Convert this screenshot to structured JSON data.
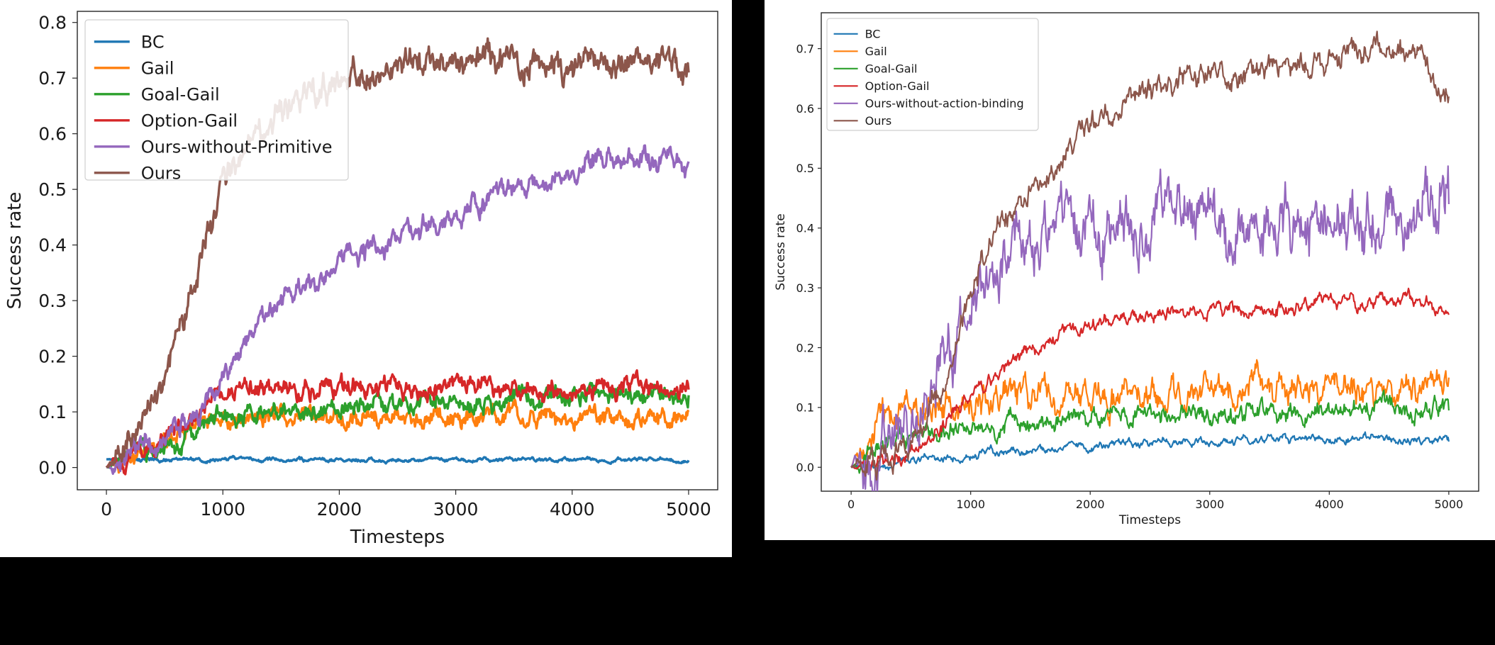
{
  "colors": {
    "BC": "#1f77b4",
    "Gail": "#ff7f0e",
    "Goal-Gail": "#2ca02c",
    "Option-Gail": "#d62728",
    "Purple": "#9467bd",
    "Ours": "#8c564b"
  },
  "chart_data": [
    {
      "type": "line",
      "xlabel": "Timesteps",
      "ylabel": "Success rate",
      "xlim": [
        -250,
        5250
      ],
      "ylim": [
        -0.04,
        0.82
      ],
      "xticks": [
        "0",
        "1000",
        "2000",
        "3000",
        "4000",
        "5000"
      ],
      "xtick_values": [
        0,
        1000,
        2000,
        3000,
        4000,
        5000
      ],
      "yticks": [
        "0.0",
        "0.1",
        "0.2",
        "0.3",
        "0.4",
        "0.5",
        "0.6",
        "0.7",
        "0.8"
      ],
      "ytick_values": [
        0.0,
        0.1,
        0.2,
        0.3,
        0.4,
        0.5,
        0.6,
        0.7,
        0.8
      ],
      "grid": false,
      "legend_position": "top-left",
      "x": [
        0,
        250,
        500,
        750,
        1000,
        1250,
        1500,
        1750,
        2000,
        2250,
        2500,
        2750,
        3000,
        3250,
        3500,
        3750,
        4000,
        4250,
        4500,
        4750,
        5000
      ],
      "series": [
        {
          "name": "BC",
          "color_key": "BC",
          "noise": 0.002,
          "values": [
            0.015,
            0.014,
            0.014,
            0.014,
            0.015,
            0.014,
            0.014,
            0.014,
            0.014,
            0.014,
            0.014,
            0.014,
            0.014,
            0.014,
            0.014,
            0.014,
            0.014,
            0.014,
            0.014,
            0.014,
            0.013
          ]
        },
        {
          "name": "Gail",
          "color_key": "Gail",
          "noise": 0.01,
          "values": [
            0.0,
            0.02,
            0.05,
            0.08,
            0.09,
            0.09,
            0.09,
            0.095,
            0.095,
            0.09,
            0.09,
            0.085,
            0.09,
            0.09,
            0.09,
            0.09,
            0.09,
            0.09,
            0.085,
            0.09,
            0.1
          ]
        },
        {
          "name": "Goal-Gail",
          "color_key": "Goal-Gail",
          "noise": 0.01,
          "values": [
            0.0,
            0.02,
            0.04,
            0.065,
            0.09,
            0.095,
            0.1,
            0.1,
            0.105,
            0.11,
            0.11,
            0.115,
            0.12,
            0.12,
            0.125,
            0.13,
            0.13,
            0.135,
            0.135,
            0.135,
            0.13
          ]
        },
        {
          "name": "Option-Gail",
          "color_key": "Option-Gail",
          "noise": 0.01,
          "values": [
            0.0,
            0.03,
            0.06,
            0.1,
            0.14,
            0.14,
            0.14,
            0.14,
            0.14,
            0.14,
            0.14,
            0.14,
            0.14,
            0.14,
            0.14,
            0.14,
            0.14,
            0.14,
            0.14,
            0.14,
            0.14
          ]
        },
        {
          "name": "Ours-without-Primitive",
          "color_key": "Purple",
          "noise": 0.012,
          "values": [
            0.0,
            0.02,
            0.05,
            0.09,
            0.15,
            0.23,
            0.3,
            0.33,
            0.37,
            0.39,
            0.41,
            0.43,
            0.45,
            0.48,
            0.5,
            0.52,
            0.54,
            0.56,
            0.56,
            0.55,
            0.55
          ]
        },
        {
          "name": "Ours",
          "color_key": "Ours",
          "noise": 0.015,
          "values": [
            0.0,
            0.06,
            0.15,
            0.33,
            0.5,
            0.6,
            0.64,
            0.67,
            0.69,
            0.72,
            0.72,
            0.72,
            0.72,
            0.73,
            0.72,
            0.72,
            0.73,
            0.73,
            0.73,
            0.73,
            0.71
          ]
        }
      ]
    },
    {
      "type": "line",
      "xlabel": "Timesteps",
      "ylabel": "Success rate",
      "xlim": [
        -250,
        5250
      ],
      "ylim": [
        -0.04,
        0.76
      ],
      "xticks": [
        "0",
        "1000",
        "2000",
        "3000",
        "4000",
        "5000"
      ],
      "xtick_values": [
        0,
        1000,
        2000,
        3000,
        4000,
        5000
      ],
      "yticks": [
        "0.0",
        "0.1",
        "0.2",
        "0.3",
        "0.4",
        "0.5",
        "0.6",
        "0.7"
      ],
      "ytick_values": [
        0.0,
        0.1,
        0.2,
        0.3,
        0.4,
        0.5,
        0.6,
        0.7
      ],
      "grid": false,
      "legend_position": "top-left",
      "x": [
        0,
        250,
        500,
        750,
        1000,
        1250,
        1500,
        1750,
        2000,
        2250,
        2500,
        2750,
        3000,
        3250,
        3500,
        3750,
        4000,
        4250,
        4500,
        4750,
        5000
      ],
      "series": [
        {
          "name": "BC",
          "color_key": "BC",
          "noise": 0.004,
          "values": [
            0.0,
            0.005,
            0.01,
            0.015,
            0.02,
            0.025,
            0.028,
            0.03,
            0.035,
            0.038,
            0.04,
            0.04,
            0.042,
            0.045,
            0.045,
            0.045,
            0.048,
            0.05,
            0.05,
            0.045,
            0.043
          ]
        },
        {
          "name": "Gail",
          "color_key": "Gail",
          "noise": 0.015,
          "values": [
            0.0,
            0.08,
            0.095,
            0.1,
            0.11,
            0.115,
            0.12,
            0.115,
            0.12,
            0.125,
            0.12,
            0.125,
            0.14,
            0.125,
            0.12,
            0.125,
            0.13,
            0.125,
            0.125,
            0.13,
            0.15
          ]
        },
        {
          "name": "Goal-Gail",
          "color_key": "Goal-Gail",
          "noise": 0.01,
          "values": [
            0.0,
            0.03,
            0.045,
            0.055,
            0.06,
            0.065,
            0.07,
            0.075,
            0.08,
            0.085,
            0.085,
            0.09,
            0.095,
            0.09,
            0.09,
            0.1,
            0.095,
            0.1,
            0.1,
            0.1,
            0.095
          ]
        },
        {
          "name": "Option-Gail",
          "color_key": "Option-Gail",
          "noise": 0.007,
          "values": [
            0.0,
            0.01,
            0.02,
            0.07,
            0.12,
            0.16,
            0.2,
            0.225,
            0.235,
            0.245,
            0.255,
            0.26,
            0.26,
            0.265,
            0.265,
            0.27,
            0.275,
            0.275,
            0.28,
            0.28,
            0.255
          ]
        },
        {
          "name": "Ours-without-action-binding",
          "color_key": "Purple",
          "noise": 0.03,
          "values": [
            0.0,
            0.04,
            0.09,
            0.17,
            0.26,
            0.33,
            0.38,
            0.4,
            0.39,
            0.41,
            0.4,
            0.41,
            0.41,
            0.4,
            0.4,
            0.41,
            0.4,
            0.4,
            0.42,
            0.43,
            0.44
          ]
        },
        {
          "name": "Ours",
          "color_key": "Ours",
          "noise": 0.012,
          "values": [
            0.0,
            0.01,
            0.04,
            0.13,
            0.3,
            0.4,
            0.47,
            0.52,
            0.57,
            0.61,
            0.63,
            0.645,
            0.655,
            0.665,
            0.67,
            0.68,
            0.685,
            0.69,
            0.7,
            0.69,
            0.62
          ]
        }
      ]
    }
  ]
}
